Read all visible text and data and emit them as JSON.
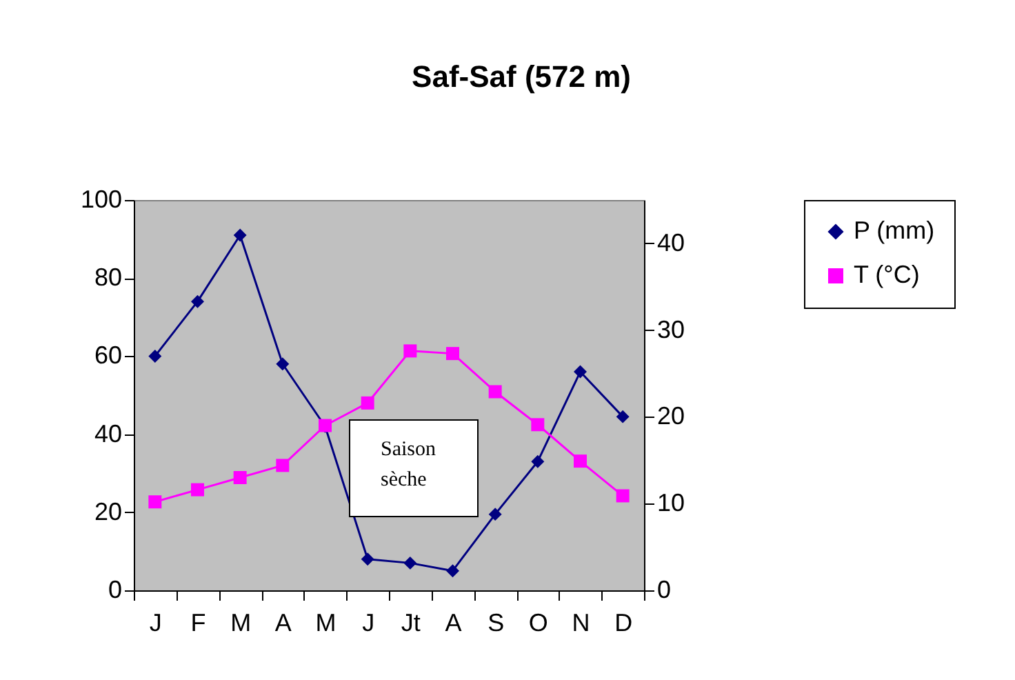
{
  "chart_data": {
    "type": "line",
    "title": "Saf-Saf (572 m)",
    "categories": [
      "J",
      "F",
      "M",
      "A",
      "M",
      "J",
      "Jt",
      "A",
      "S",
      "O",
      "N",
      "D"
    ],
    "series": [
      {
        "name": "P (mm)",
        "color": "#000080",
        "marker": "diamond",
        "values": [
          60,
          74,
          91,
          58,
          42,
          8,
          7,
          5,
          19.5,
          33,
          56,
          44.5
        ]
      },
      {
        "name": "T (°C)",
        "color": "#ff00ff",
        "marker": "square",
        "axis": "y2",
        "values": [
          10.2,
          11.6,
          13,
          14.4,
          19,
          21.6,
          27.6,
          27.3,
          22.9,
          19.1,
          14.9,
          10.9
        ]
      }
    ],
    "ylim": [
      0,
      100
    ],
    "yticks": [
      0,
      20,
      40,
      60,
      80,
      100
    ],
    "y2lim": [
      0,
      45
    ],
    "y2ticks": [
      0,
      10,
      20,
      30,
      40
    ],
    "grid": false,
    "legend": "right",
    "line_style": "solid",
    "annotations": [
      "Saison sèche"
    ]
  }
}
